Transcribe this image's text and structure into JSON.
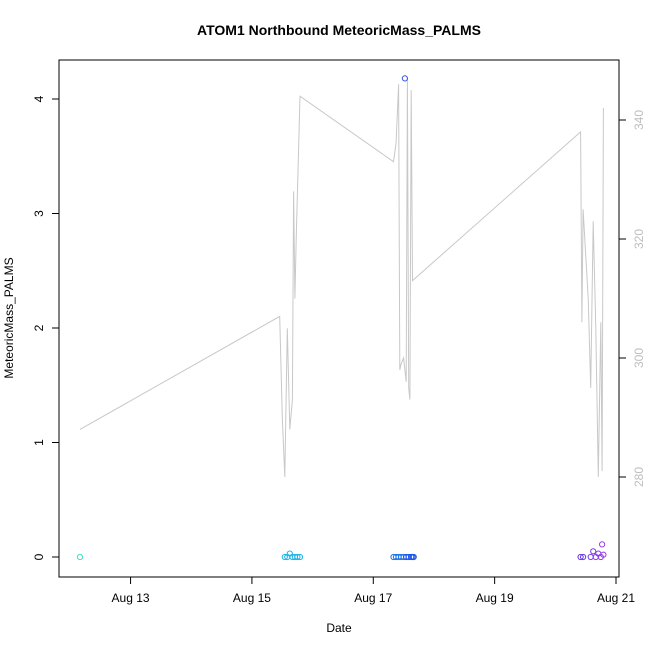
{
  "chart_data": {
    "type": "scatter",
    "title": "ATOM1 Northbound MeteoricMass_PALMS",
    "xlabel": "Date",
    "ylabel": "MeteoricMass_PALMS",
    "y2label": "",
    "xlim": [
      "2016-08-12",
      "2016-08-21"
    ],
    "ylim": [
      0,
      4.2
    ],
    "y2lim": [
      263,
      350
    ],
    "x_ticks": [
      "Aug 13",
      "Aug 15",
      "Aug 17",
      "Aug 19",
      "Aug 21"
    ],
    "y_ticks": [
      "0",
      "1",
      "2",
      "3",
      "4"
    ],
    "y2_ticks": [
      "280",
      "300",
      "320",
      "340"
    ],
    "grid": false,
    "colors": {
      "line": "#c8c8c8",
      "axis": "#000000",
      "right_axis": "#bdbdbd"
    },
    "series": [
      {
        "style": "points",
        "points": [
          {
            "x": "2016-08-12 04:00",
            "y": 0.0,
            "color": "#40e0c0"
          },
          {
            "x": "2016-08-15 13:00",
            "y": 0.0,
            "color": "#1cb4e8"
          },
          {
            "x": "2016-08-15 14:00",
            "y": 0.0,
            "color": "#1cb4e8"
          },
          {
            "x": "2016-08-15 15:00",
            "y": 0.03,
            "color": "#1cb4e8"
          },
          {
            "x": "2016-08-15 16:00",
            "y": 0.0,
            "color": "#1cb4e8"
          },
          {
            "x": "2016-08-15 17:00",
            "y": 0.0,
            "color": "#1cb4e8"
          },
          {
            "x": "2016-08-15 18:00",
            "y": 0.0,
            "color": "#1cb4e8"
          },
          {
            "x": "2016-08-15 19:00",
            "y": 0.0,
            "color": "#1cb4e8"
          },
          {
            "x": "2016-08-17 08:00",
            "y": 0.0,
            "color": "#1a73e8"
          },
          {
            "x": "2016-08-17 09:00",
            "y": 0.0,
            "color": "#1a73e8"
          },
          {
            "x": "2016-08-17 10:00",
            "y": 0.0,
            "color": "#1a73e8"
          },
          {
            "x": "2016-08-17 11:00",
            "y": 0.0,
            "color": "#1a73e8"
          },
          {
            "x": "2016-08-17 12:00",
            "y": 0.0,
            "color": "#1a73e8"
          },
          {
            "x": "2016-08-17 12:30",
            "y": 4.18,
            "color": "#3355ee"
          },
          {
            "x": "2016-08-17 13:00",
            "y": 0.0,
            "color": "#1a55e8"
          },
          {
            "x": "2016-08-17 14:00",
            "y": 0.0,
            "color": "#1a55e8"
          },
          {
            "x": "2016-08-17 15:00",
            "y": 0.0,
            "color": "#1a55e8"
          },
          {
            "x": "2016-08-17 15:30",
            "y": 0.0,
            "color": "#1a55e8"
          },
          {
            "x": "2016-08-17 16:00",
            "y": 0.0,
            "color": "#1a55e8"
          },
          {
            "x": "2016-08-20 10:00",
            "y": 0.0,
            "color": "#6a3ae8"
          },
          {
            "x": "2016-08-20 11:00",
            "y": 0.0,
            "color": "#6a3ae8"
          },
          {
            "x": "2016-08-20 14:00",
            "y": 0.0,
            "color": "#7a3ae8"
          },
          {
            "x": "2016-08-20 15:00",
            "y": 0.05,
            "color": "#7a3ae8"
          },
          {
            "x": "2016-08-20 16:00",
            "y": 0.0,
            "color": "#8a3ae8"
          },
          {
            "x": "2016-08-20 17:00",
            "y": 0.03,
            "color": "#8a3ae8"
          },
          {
            "x": "2016-08-20 18:00",
            "y": 0.0,
            "color": "#8a3ae8"
          },
          {
            "x": "2016-08-20 18:30",
            "y": 0.11,
            "color": "#9a3ae8"
          },
          {
            "x": "2016-08-20 19:00",
            "y": 0.02,
            "color": "#9a3ae8"
          }
        ]
      },
      {
        "style": "line",
        "axis": "right",
        "points": [
          {
            "x": "2016-08-12 04:00",
            "y": 288
          },
          {
            "x": "2016-08-15 11:00",
            "y": 307
          },
          {
            "x": "2016-08-15 12:00",
            "y": 290
          },
          {
            "x": "2016-08-15 13:00",
            "y": 280
          },
          {
            "x": "2016-08-15 14:00",
            "y": 305
          },
          {
            "x": "2016-08-15 15:00",
            "y": 288
          },
          {
            "x": "2016-08-15 16:00",
            "y": 293
          },
          {
            "x": "2016-08-15 16:30",
            "y": 328
          },
          {
            "x": "2016-08-15 17:00",
            "y": 310
          },
          {
            "x": "2016-08-15 17:30",
            "y": 320
          },
          {
            "x": "2016-08-15 19:00",
            "y": 344
          },
          {
            "x": "2016-08-17 08:00",
            "y": 333
          },
          {
            "x": "2016-08-17 09:00",
            "y": 336
          },
          {
            "x": "2016-08-17 10:00",
            "y": 346
          },
          {
            "x": "2016-08-17 10:30",
            "y": 298
          },
          {
            "x": "2016-08-17 11:00",
            "y": 299
          },
          {
            "x": "2016-08-17 12:00",
            "y": 300
          },
          {
            "x": "2016-08-17 12:30",
            "y": 298
          },
          {
            "x": "2016-08-17 13:00",
            "y": 296
          },
          {
            "x": "2016-08-17 13:30",
            "y": 347
          },
          {
            "x": "2016-08-17 14:00",
            "y": 295
          },
          {
            "x": "2016-08-17 14:30",
            "y": 293
          },
          {
            "x": "2016-08-17 15:00",
            "y": 345
          },
          {
            "x": "2016-08-17 15:30",
            "y": 313
          },
          {
            "x": "2016-08-20 10:00",
            "y": 338
          },
          {
            "x": "2016-08-20 10:30",
            "y": 306
          },
          {
            "x": "2016-08-20 11:00",
            "y": 325
          },
          {
            "x": "2016-08-20 13:00",
            "y": 310
          },
          {
            "x": "2016-08-20 14:00",
            "y": 295
          },
          {
            "x": "2016-08-20 15:00",
            "y": 323
          },
          {
            "x": "2016-08-20 16:00",
            "y": 305
          },
          {
            "x": "2016-08-20 17:00",
            "y": 280
          },
          {
            "x": "2016-08-20 18:00",
            "y": 306
          },
          {
            "x": "2016-08-20 18:30",
            "y": 281
          },
          {
            "x": "2016-08-20 19:00",
            "y": 342
          }
        ]
      }
    ]
  }
}
